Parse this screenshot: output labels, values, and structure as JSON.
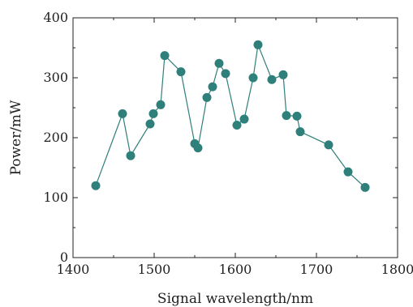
{
  "chart_data": {
    "type": "line",
    "title": "",
    "xlabel": "Signal wavelength/nm",
    "ylabel": "Power/mW",
    "xlim": [
      1400,
      1800
    ],
    "ylim": [
      0,
      400
    ],
    "x_ticks": [
      1400,
      1500,
      1600,
      1700,
      1800
    ],
    "y_ticks": [
      0,
      100,
      200,
      300,
      400
    ],
    "x_tick_labels": [
      "1400",
      "1500",
      "1600",
      "1700",
      "1800"
    ],
    "y_tick_labels": [
      "0",
      "100",
      "200",
      "300",
      "400"
    ],
    "grid": false,
    "legend": "none",
    "colors": {
      "series": "#2f7f7b",
      "axis": "#222222"
    },
    "series": [
      {
        "x": [
          1428,
          1461,
          1471,
          1495,
          1499,
          1508,
          1513,
          1533,
          1550,
          1554,
          1565,
          1572,
          1580,
          1588,
          1602,
          1611,
          1622,
          1628,
          1645,
          1659,
          1663,
          1676,
          1680,
          1715,
          1739,
          1760
        ],
        "y": [
          120,
          240,
          170,
          223,
          240,
          255,
          337,
          310,
          190,
          183,
          267,
          285,
          324,
          307,
          221,
          231,
          300,
          355,
          297,
          305,
          237,
          236,
          210,
          188,
          143,
          117
        ]
      }
    ]
  }
}
